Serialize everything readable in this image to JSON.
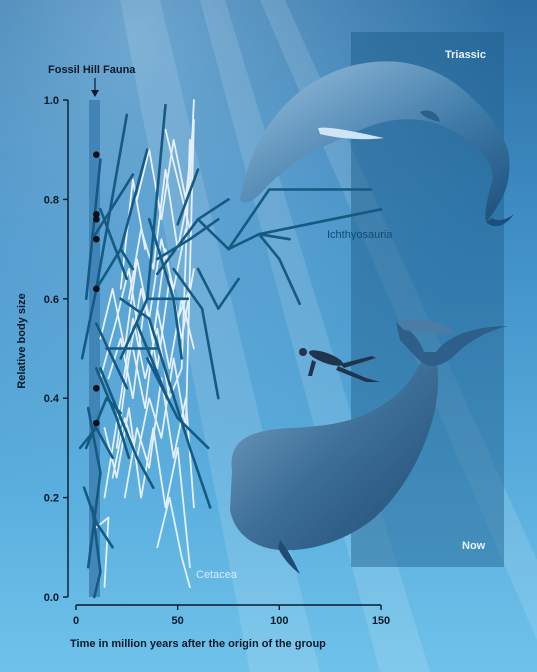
{
  "labels": {
    "fossil_hill": "Fossil Hill Fauna",
    "triassic": "Triassic",
    "now": "Now",
    "ichthyosauria": "Ichthyosauria",
    "cetacea": "Cetacea"
  },
  "colors": {
    "ichthyosauria": "#155a82",
    "cetacea": "#e4efff",
    "axis": "#0a1a2a",
    "points": "#0a0f18"
  },
  "chart_data": {
    "type": "line",
    "xlabel": "Time in million years after the origin of the group",
    "ylabel": "Relative body size",
    "xlim": [
      0,
      150
    ],
    "ylim": [
      0,
      1.0
    ],
    "xticks": [
      0,
      50,
      100,
      150
    ],
    "yticks": [
      0.0,
      0.2,
      0.4,
      0.6,
      0.8,
      1.0
    ],
    "ytick_labels": [
      "0.0",
      "0.2",
      "0.4",
      "0.6",
      "0.8",
      "1.0"
    ],
    "annotations": [
      {
        "text": "Fossil Hill Fauna",
        "x": 10,
        "band": [
          7,
          12
        ]
      }
    ],
    "series": [
      {
        "name": "Ichthyosauria",
        "segments": [
          [
            [
              3,
              0.48
            ],
            [
              10,
              0.62
            ],
            [
              25,
              0.97
            ]
          ],
          [
            [
              5,
              0.6
            ],
            [
              12,
              0.88
            ]
          ],
          [
            [
              8,
              0.72
            ],
            [
              28,
              0.85
            ]
          ],
          [
            [
              10,
              0.62
            ],
            [
              22,
              0.7
            ],
            [
              35,
              0.9
            ]
          ],
          [
            [
              22,
              0.7
            ],
            [
              28,
              0.66
            ]
          ],
          [
            [
              12,
              0.78
            ],
            [
              25,
              0.64
            ]
          ],
          [
            [
              10,
              0.55
            ],
            [
              25,
              0.42
            ]
          ],
          [
            [
              15,
              0.5
            ],
            [
              40,
              0.5
            ]
          ],
          [
            [
              22,
              0.48
            ],
            [
              35,
              0.6
            ],
            [
              44,
              0.99
            ]
          ],
          [
            [
              35,
              0.6
            ],
            [
              55,
              0.6
            ]
          ],
          [
            [
              30,
              0.55
            ],
            [
              45,
              0.4
            ]
          ],
          [
            [
              40,
              0.65
            ],
            [
              60,
              0.76
            ],
            [
              75,
              0.7
            ],
            [
              90,
              0.73
            ],
            [
              150,
              0.78
            ]
          ],
          [
            [
              60,
              0.76
            ],
            [
              75,
              0.8
            ]
          ],
          [
            [
              60,
              0.66
            ],
            [
              70,
              0.58
            ],
            [
              80,
              0.64
            ]
          ],
          [
            [
              75,
              0.7
            ],
            [
              95,
              0.82
            ],
            [
              145,
              0.82
            ]
          ],
          [
            [
              90,
              0.73
            ],
            [
              100,
              0.68
            ],
            [
              110,
              0.59
            ]
          ],
          [
            [
              90,
              0.73
            ],
            [
              105,
              0.72
            ]
          ],
          [
            [
              48,
              0.66
            ],
            [
              62,
              0.58
            ],
            [
              70,
              0.4
            ]
          ],
          [
            [
              50,
              0.75
            ],
            [
              60,
              0.86
            ]
          ],
          [
            [
              40,
              0.68
            ],
            [
              56,
              0.72
            ],
            [
              70,
              0.76
            ]
          ],
          [
            [
              35,
              0.48
            ],
            [
              50,
              0.36
            ],
            [
              65,
              0.3
            ]
          ],
          [
            [
              5,
              0.3
            ],
            [
              15,
              0.4
            ],
            [
              22,
              0.37
            ]
          ],
          [
            [
              4,
              0.22
            ],
            [
              10,
              0.15
            ],
            [
              18,
              0.1
            ]
          ],
          [
            [
              6,
              0.38
            ],
            [
              12,
              0.25
            ],
            [
              6,
              0.06
            ]
          ],
          [
            [
              8,
              0.18
            ],
            [
              12,
              0.05
            ],
            [
              9,
              0.0
            ]
          ],
          [
            [
              2,
              0.3
            ],
            [
              10,
              0.34
            ],
            [
              18,
              0.28
            ]
          ],
          [
            [
              10,
              0.46
            ],
            [
              20,
              0.36
            ],
            [
              26,
              0.28
            ]
          ],
          [
            [
              12,
              0.46
            ],
            [
              30,
              0.28
            ],
            [
              38,
              0.22
            ]
          ],
          [
            [
              22,
              0.6
            ],
            [
              36,
              0.56
            ],
            [
              56,
              0.3
            ],
            [
              66,
              0.18
            ]
          ],
          [
            [
              36,
              0.76
            ],
            [
              48,
              0.6
            ],
            [
              52,
              0.48
            ]
          ]
        ]
      },
      {
        "name": "Cetacea",
        "segments": [
          [
            [
              14,
              0.2
            ],
            [
              22,
              0.4
            ],
            [
              28,
              0.56
            ],
            [
              34,
              0.44
            ],
            [
              40,
              0.54
            ],
            [
              46,
              0.4
            ],
            [
              52,
              0.46
            ],
            [
              56,
              0.92
            ]
          ],
          [
            [
              20,
              0.3
            ],
            [
              26,
              0.48
            ],
            [
              32,
              0.62
            ],
            [
              38,
              0.52
            ],
            [
              44,
              0.7
            ],
            [
              50,
              0.56
            ],
            [
              56,
              0.62
            ]
          ],
          [
            [
              18,
              0.24
            ],
            [
              24,
              0.36
            ],
            [
              30,
              0.28
            ],
            [
              36,
              0.4
            ],
            [
              42,
              0.32
            ],
            [
              48,
              0.48
            ],
            [
              54,
              0.34
            ],
            [
              58,
              0.96
            ]
          ],
          [
            [
              16,
              0.44
            ],
            [
              22,
              0.52
            ],
            [
              28,
              0.4
            ],
            [
              34,
              0.6
            ],
            [
              40,
              0.46
            ],
            [
              46,
              0.64
            ],
            [
              52,
              0.52
            ],
            [
              58,
              0.66
            ]
          ],
          [
            [
              24,
              0.2
            ],
            [
              30,
              0.34
            ],
            [
              36,
              0.26
            ],
            [
              42,
              0.44
            ],
            [
              48,
              0.28
            ],
            [
              54,
              0.4
            ],
            [
              58,
              0.18
            ]
          ],
          [
            [
              26,
              0.6
            ],
            [
              32,
              0.74
            ],
            [
              38,
              0.66
            ],
            [
              44,
              0.86
            ],
            [
              50,
              0.7
            ],
            [
              56,
              0.82
            ],
            [
              58,
              1.0
            ]
          ],
          [
            [
              30,
              0.8
            ],
            [
              36,
              0.9
            ],
            [
              42,
              0.76
            ],
            [
              48,
              0.92
            ],
            [
              54,
              0.8
            ],
            [
              58,
              0.96
            ]
          ],
          [
            [
              12,
              0.52
            ],
            [
              18,
              0.62
            ],
            [
              24,
              0.5
            ],
            [
              30,
              0.68
            ],
            [
              36,
              0.56
            ],
            [
              42,
              0.72
            ],
            [
              48,
              0.62
            ],
            [
              54,
              0.74
            ]
          ],
          [
            [
              14,
              0.34
            ],
            [
              20,
              0.24
            ],
            [
              26,
              0.38
            ],
            [
              32,
              0.2
            ],
            [
              38,
              0.34
            ],
            [
              44,
              0.18
            ],
            [
              50,
              0.3
            ],
            [
              56,
              0.06
            ]
          ],
          [
            [
              28,
              0.5
            ],
            [
              34,
              0.38
            ],
            [
              40,
              0.58
            ],
            [
              46,
              0.46
            ],
            [
              52,
              0.6
            ],
            [
              58,
              0.5
            ]
          ],
          [
            [
              40,
              0.1
            ],
            [
              46,
              0.2
            ],
            [
              52,
              0.08
            ],
            [
              56,
              0.02
            ]
          ],
          [
            [
              22,
              0.62
            ],
            [
              28,
              0.84
            ],
            [
              34,
              0.7
            ]
          ],
          [
            [
              44,
              0.94
            ],
            [
              50,
              0.84
            ],
            [
              56,
              0.74
            ]
          ],
          [
            [
              12,
              0.44
            ],
            [
              20,
              0.56
            ],
            [
              26,
              0.66
            ],
            [
              32,
              0.5
            ]
          ],
          [
            [
              10,
              0.14
            ],
            [
              16,
              0.16
            ],
            [
              14,
              0.02
            ]
          ]
        ]
      }
    ],
    "points": [
      {
        "x": 10,
        "y": 0.89
      },
      {
        "x": 10,
        "y": 0.77
      },
      {
        "x": 10,
        "y": 0.76
      },
      {
        "x": 10,
        "y": 0.72
      },
      {
        "x": 10,
        "y": 0.62
      },
      {
        "x": 10,
        "y": 0.42
      },
      {
        "x": 10,
        "y": 0.35
      }
    ]
  }
}
